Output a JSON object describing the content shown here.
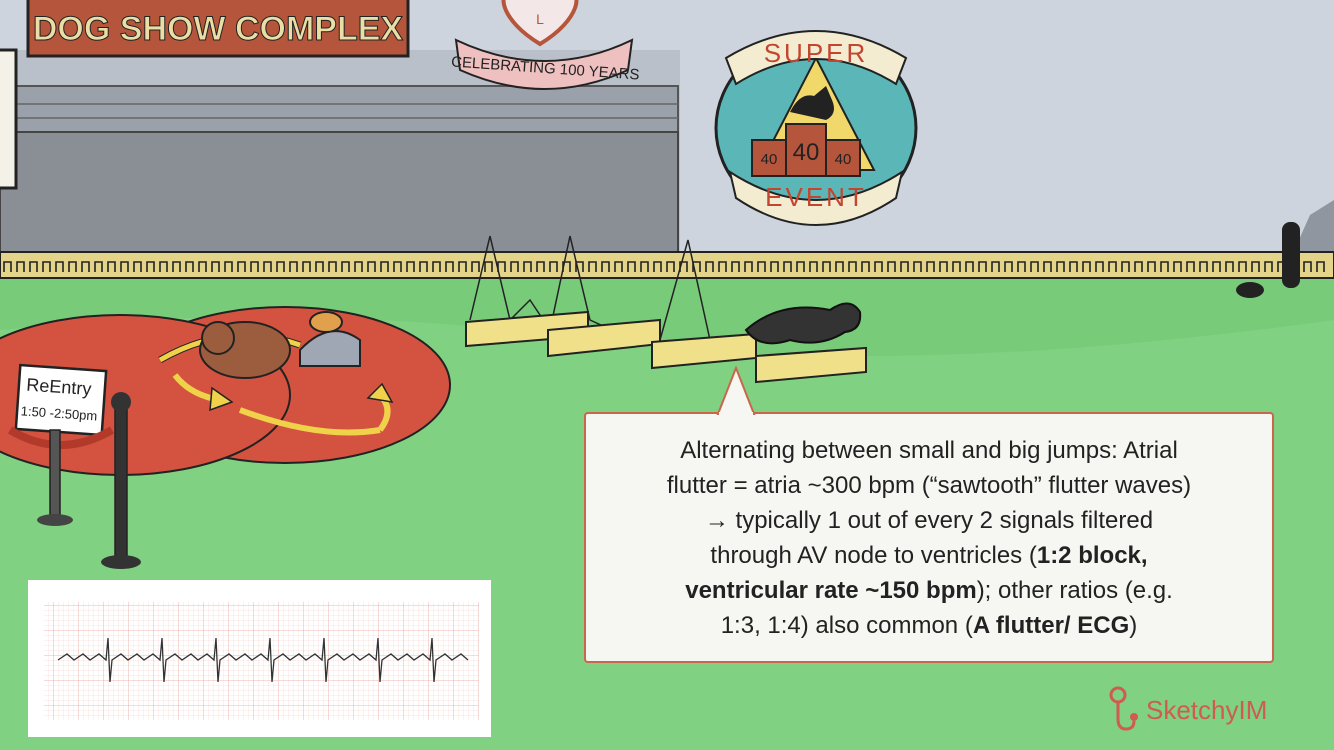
{
  "signs": {
    "complex": "DOG SHOW COMPLEX",
    "celebrating": "CELEBRATING 100 YEARS",
    "heart_letter": "L",
    "super": "SUPER",
    "event": "EVENT",
    "podium_left": "40",
    "podium_center": "40",
    "podium_right": "40",
    "reentry_title": "ReEntry",
    "reentry_times": "1:50 -2:50pm"
  },
  "callout": {
    "line1": "Alternating between small and big jumps: Atrial",
    "line2": "flutter = atria ~300 bpm (“sawtooth” flutter waves)",
    "line3": "→ typically 1 out of every 2 signals filtered",
    "line4_a": "through AV node to ventricles (",
    "line4_b": "1:2 block,",
    "line5_a": "ventricular rate ~150 bpm",
    "line5_b": "); other ratios (e.g.",
    "line6_a": "1:3, 1:4) also common (",
    "line6_b": "A flutter/ ECG",
    "line6_c": ")"
  },
  "logo": {
    "text": "Sketchy",
    "suffix": "IM"
  },
  "colors": {
    "sky": "#c9d1db",
    "grass": "#7fd17f",
    "arena": "#d45340",
    "building": "#8a8f96",
    "sign_brown": "#b5553b",
    "sign_cream": "#e9dfa6",
    "callout_border": "#c8674c",
    "brand": "#cf5b52"
  }
}
